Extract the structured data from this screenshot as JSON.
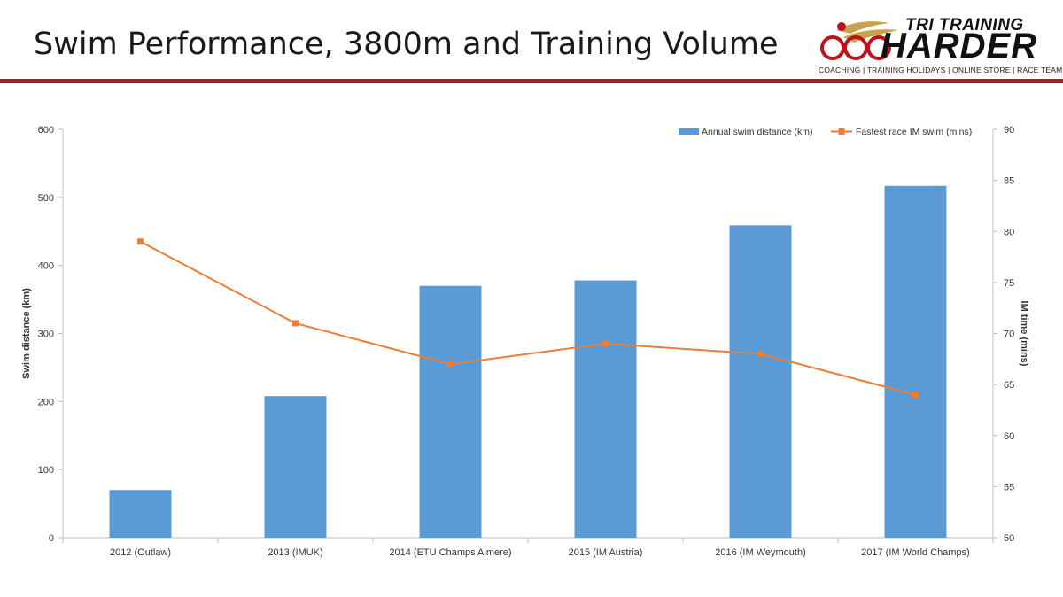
{
  "slide": {
    "title": "Swim Performance, 3800m and Training Volume",
    "brand_top": "TRI TRAINING",
    "brand_main": "HARDER",
    "brand_tagline": "COACHING | TRAINING HOLIDAYS | ONLINE STORE | RACE TEAM",
    "accent_color": "#a31d21"
  },
  "chart_data": {
    "type": "bar",
    "categories": [
      "2012 (Outlaw)",
      "2013      (IMUK)",
      "2014       (ETU Champs Almere)",
      "2015              (IM Austria)",
      "2016 (IM Weymouth)",
      "2017 (IM World Champs)"
    ],
    "series": [
      {
        "name": "Annual swim distance (km)",
        "type": "bar",
        "axis": "left",
        "color": "#5b9bd5",
        "values": [
          70,
          208,
          370,
          378,
          459,
          517
        ]
      },
      {
        "name": "Fastest race IM swim (mins)",
        "type": "line",
        "axis": "right",
        "color": "#ed7d31",
        "values": [
          79,
          71,
          67,
          69,
          68,
          64
        ]
      }
    ],
    "ylabel": "Swim distance (km)",
    "y2label": "IM time (mins)",
    "ylim": [
      0,
      600
    ],
    "y2lim": [
      50,
      90
    ],
    "yticks": [
      "0",
      "100",
      "200",
      "300",
      "400",
      "500",
      "600"
    ],
    "y2ticks": [
      "50",
      "55",
      "60",
      "65",
      "70",
      "75",
      "80",
      "85",
      "90"
    ],
    "legend_position": "top-right",
    "grid": false
  }
}
